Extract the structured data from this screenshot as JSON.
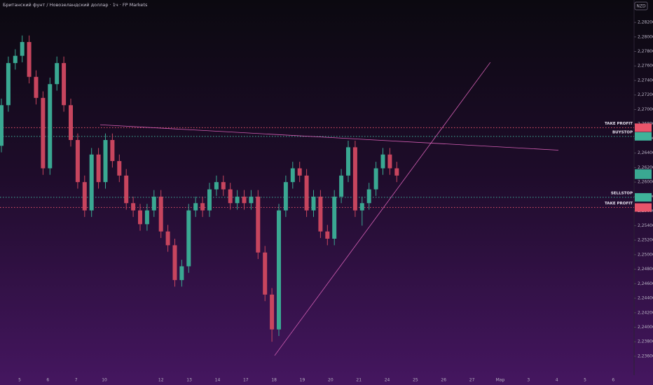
{
  "chart_data": {
    "type": "candlestick",
    "title": "Британский фунт / Новозеландский доллар · 1ч · FP Markets",
    "currency": "NZD",
    "categories": [
      "5",
      "6",
      "7",
      "10",
      null,
      "12",
      "13",
      "14",
      "17",
      "18",
      "19",
      "20",
      "21",
      "24",
      "25",
      "26",
      "27",
      "Мар",
      "3",
      "4",
      "5",
      "6"
    ],
    "ylim": [
      2.23349,
      2.28509
    ],
    "yticks": [
      {
        "value": 2.282,
        "label": "2,28200"
      },
      {
        "value": 2.28,
        "label": "2,28000"
      },
      {
        "value": 2.278,
        "label": "2,27800"
      },
      {
        "value": 2.276,
        "label": "2,27600"
      },
      {
        "value": 2.274,
        "label": "2,27400"
      },
      {
        "value": 2.272,
        "label": "2,27200"
      },
      {
        "value": 2.27,
        "label": "2,27000"
      },
      {
        "value": 2.268,
        "label": "2,26800"
      },
      {
        "value": 2.266,
        "label": "2,26600"
      },
      {
        "value": 2.264,
        "label": "2,26400"
      },
      {
        "value": 2.262,
        "label": "2,26200"
      },
      {
        "value": 2.26,
        "label": "2,26000"
      },
      {
        "value": 2.258,
        "label": "2,25800"
      },
      {
        "value": 2.256,
        "label": "2,25600"
      },
      {
        "value": 2.254,
        "label": "2,25400"
      },
      {
        "value": 2.252,
        "label": "2,25200"
      },
      {
        "value": 2.25,
        "label": "2,25000"
      },
      {
        "value": 2.248,
        "label": "2,24800"
      },
      {
        "value": 2.246,
        "label": "2,24600"
      },
      {
        "value": 2.244,
        "label": "2,24400"
      },
      {
        "value": 2.242,
        "label": "2,24200"
      },
      {
        "value": 2.24,
        "label": "2,24000"
      },
      {
        "value": 2.238,
        "label": "2,23800"
      },
      {
        "value": 2.236,
        "label": "2,23600"
      }
    ],
    "up_color": "#3aa892",
    "down_color": "#c7455e",
    "candles": {
      "open": [
        2.265,
        2.2706,
        2.2764,
        2.2774,
        2.2793,
        2.2745,
        2.2716,
        2.2619,
        2.2735,
        2.2764,
        2.2706,
        2.2658,
        2.26,
        2.2561,
        2.2638,
        2.26,
        2.2658,
        2.2629,
        2.2609,
        2.2571,
        2.2561,
        2.2542,
        2.2561,
        2.258,
        2.2532,
        2.2513,
        2.2465,
        2.2484,
        2.2561,
        2.2571,
        2.2561,
        2.259,
        2.26,
        2.259,
        2.2571,
        2.258,
        2.2571,
        2.258,
        2.2503,
        2.2445,
        2.2397,
        2.2561,
        2.26,
        2.2619,
        2.2609,
        2.2561,
        2.258,
        2.2532,
        2.2522,
        2.258,
        2.2609,
        2.2648,
        2.2561,
        2.2571,
        2.259,
        2.2619,
        2.2638,
        2.2619
      ],
      "high": [
        2.2715,
        2.2773,
        2.2783,
        2.2802,
        2.2802,
        2.2754,
        2.2725,
        2.2744,
        2.2773,
        2.2773,
        2.2715,
        2.2667,
        2.2609,
        2.2647,
        2.2647,
        2.2667,
        2.2667,
        2.2638,
        2.2618,
        2.258,
        2.257,
        2.257,
        2.2589,
        2.2589,
        2.2541,
        2.2522,
        2.2493,
        2.257,
        2.258,
        2.258,
        2.2599,
        2.2609,
        2.2609,
        2.2599,
        2.2589,
        2.2589,
        2.2589,
        2.2589,
        2.2512,
        2.2454,
        2.257,
        2.2609,
        2.2628,
        2.2628,
        2.2618,
        2.2589,
        2.2589,
        2.2541,
        2.2589,
        2.2618,
        2.2657,
        2.2657,
        2.258,
        2.2599,
        2.2628,
        2.2647,
        2.2647,
        2.2628
      ],
      "low": [
        2.2641,
        2.2697,
        2.2755,
        2.2765,
        2.2736,
        2.2707,
        2.261,
        2.261,
        2.2726,
        2.2697,
        2.2649,
        2.2591,
        2.2552,
        2.2552,
        2.2591,
        2.2591,
        2.262,
        2.26,
        2.2562,
        2.2552,
        2.2533,
        2.2533,
        2.2552,
        2.2523,
        2.2504,
        2.2456,
        2.2456,
        2.2475,
        2.2552,
        2.2552,
        2.2552,
        2.2581,
        2.2581,
        2.2562,
        2.2562,
        2.2562,
        2.2562,
        2.2494,
        2.2436,
        2.238,
        2.2388,
        2.2552,
        2.2591,
        2.26,
        2.2552,
        2.2552,
        2.2523,
        2.2513,
        2.2513,
        2.2571,
        2.26,
        2.2552,
        2.254,
        2.2562,
        2.2581,
        2.261,
        2.261,
        2.26
      ],
      "close": [
        2.2706,
        2.2764,
        2.2774,
        2.2793,
        2.2745,
        2.2716,
        2.2619,
        2.2735,
        2.2764,
        2.2706,
        2.2658,
        2.26,
        2.2561,
        2.2638,
        2.26,
        2.2658,
        2.2629,
        2.2609,
        2.2571,
        2.2561,
        2.2542,
        2.2561,
        2.258,
        2.2532,
        2.2513,
        2.2465,
        2.2484,
        2.2561,
        2.2571,
        2.2561,
        2.259,
        2.26,
        2.259,
        2.2571,
        2.258,
        2.2571,
        2.258,
        2.2503,
        2.2445,
        2.2397,
        2.2561,
        2.26,
        2.2619,
        2.2609,
        2.2561,
        2.258,
        2.2532,
        2.2522,
        2.258,
        2.2609,
        2.2648,
        2.2561,
        2.2571,
        2.259,
        2.2619,
        2.2638,
        2.2619,
        2.2609
      ]
    },
    "current_price": 2.2611,
    "levels": [
      {
        "label": "TAKE PROFIT",
        "value": 2.2675,
        "color": "#e8546a"
      },
      {
        "label": "BUYSTOP",
        "value": 2.2663,
        "color": "#3fb39a"
      },
      {
        "label": "SELLSTOP",
        "value": 2.2579,
        "color": "#3fb39a"
      },
      {
        "label": "TAKE PROFIT",
        "value": 2.2565,
        "color": "#e8546a"
      }
    ],
    "trendlines": [
      {
        "x": [
          2.85,
          19.06
        ],
        "y": [
          2.2679,
          2.2644
        ],
        "color": "#d45fb4"
      },
      {
        "x": [
          9.02,
          16.65
        ],
        "y": [
          2.2361,
          2.2765
        ],
        "color": "#d45fb4"
      }
    ]
  }
}
